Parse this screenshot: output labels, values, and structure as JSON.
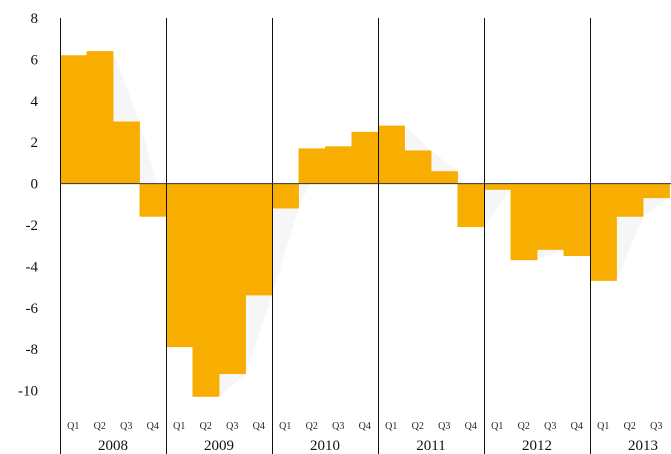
{
  "chart_data": {
    "type": "bar",
    "quarter_labels": [
      "Q1",
      "Q2",
      "Q3",
      "Q4"
    ],
    "years": [
      {
        "label": "2008",
        "values": [
          6.2,
          6.4,
          3.0,
          -1.6
        ]
      },
      {
        "label": "2009",
        "values": [
          -7.9,
          -10.3,
          -9.2,
          -5.4
        ]
      },
      {
        "label": "2010",
        "values": [
          -1.2,
          1.7,
          1.8,
          2.5
        ]
      },
      {
        "label": "2011",
        "values": [
          2.8,
          1.6,
          0.6,
          -2.1
        ]
      },
      {
        "label": "2012",
        "values": [
          -0.3,
          -3.7,
          -3.2,
          -3.5
        ]
      },
      {
        "label": "2013",
        "values": [
          -4.7,
          -1.6,
          -0.7
        ]
      }
    ],
    "yticks": [
      "8",
      "6",
      "4",
      "2",
      "0",
      "-2",
      "-4",
      "-6",
      "-8",
      "-10"
    ],
    "ylim": [
      -10.5,
      8
    ],
    "bar_color": "#f7ae00",
    "divider_color": "#111111",
    "grid": false,
    "legend": "none"
  }
}
